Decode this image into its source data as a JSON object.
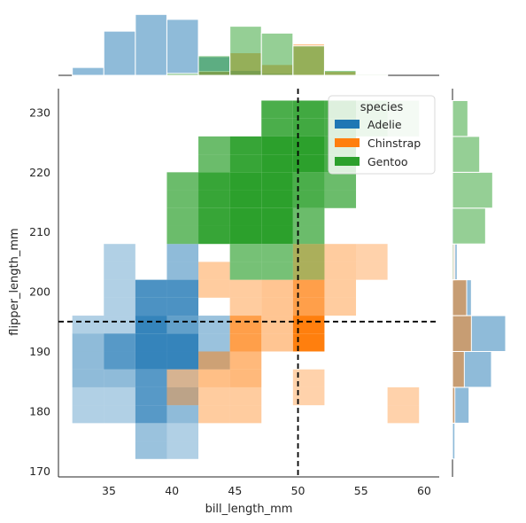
{
  "chart_data": {
    "type": "heatmap",
    "subtype": "joint-histogram-with-marginals",
    "xlabel": "bill_length_mm",
    "ylabel": "flipper_length_mm",
    "xlim": [
      31,
      61.2
    ],
    "ylim": [
      169,
      234
    ],
    "xticks": [
      35,
      40,
      45,
      50,
      55,
      60
    ],
    "yticks": [
      170,
      180,
      190,
      200,
      210,
      220,
      230
    ],
    "x_bin_edges": [
      32.1,
      34.6,
      37.1,
      39.6,
      42.1,
      44.6,
      47.1,
      49.6,
      52.1,
      54.6,
      57.1,
      59.6
    ],
    "y_bin_edges": [
      172,
      175,
      178,
      181,
      184,
      187,
      190,
      193,
      196,
      199,
      202,
      205,
      208,
      211,
      214,
      217,
      220,
      223,
      226,
      229,
      232
    ],
    "reference_lines": {
      "x": 50,
      "y": 195,
      "style": "dashed",
      "color": "#000000"
    },
    "legend": {
      "title": "species",
      "placement": "top-right",
      "entries": [
        {
          "label": "Adelie",
          "color": "#1f77b4"
        },
        {
          "label": "Chinstrap",
          "color": "#ff7f0e"
        },
        {
          "label": "Gentoo",
          "color": "#2ca02c"
        }
      ]
    },
    "series": [
      {
        "name": "Adelie",
        "color": "#1f77b4",
        "cells": [
          [
            0,
            2,
            0.35
          ],
          [
            0,
            3,
            0.35
          ],
          [
            0,
            4,
            0.5
          ],
          [
            0,
            5,
            0.5
          ],
          [
            0,
            6,
            0.5
          ],
          [
            0,
            7,
            0.35
          ],
          [
            1,
            2,
            0.35
          ],
          [
            1,
            3,
            0.35
          ],
          [
            1,
            4,
            0.5
          ],
          [
            1,
            5,
            0.75
          ],
          [
            1,
            6,
            0.75
          ],
          [
            1,
            7,
            0.35
          ],
          [
            1,
            8,
            0.35
          ],
          [
            1,
            9,
            0.35
          ],
          [
            1,
            10,
            0.35
          ],
          [
            1,
            11,
            0.35
          ],
          [
            2,
            0,
            0.45
          ],
          [
            2,
            1,
            0.45
          ],
          [
            2,
            2,
            0.75
          ],
          [
            2,
            3,
            0.75
          ],
          [
            2,
            4,
            0.75
          ],
          [
            2,
            5,
            0.9
          ],
          [
            2,
            6,
            0.9
          ],
          [
            2,
            7,
            0.9
          ],
          [
            2,
            8,
            0.8
          ],
          [
            2,
            9,
            0.8
          ],
          [
            3,
            0,
            0.35
          ],
          [
            3,
            1,
            0.35
          ],
          [
            3,
            2,
            0.5
          ],
          [
            3,
            3,
            0.5
          ],
          [
            3,
            4,
            0.3
          ],
          [
            3,
            5,
            0.9
          ],
          [
            3,
            6,
            0.9
          ],
          [
            3,
            7,
            0.7
          ],
          [
            3,
            8,
            0.8
          ],
          [
            3,
            9,
            0.8
          ],
          [
            3,
            10,
            0.5
          ],
          [
            3,
            11,
            0.5
          ],
          [
            4,
            5,
            0.45
          ],
          [
            4,
            6,
            0.45
          ],
          [
            4,
            7,
            0.45
          ]
        ]
      },
      {
        "name": "Chinstrap",
        "color": "#ff7f0e",
        "cells": [
          [
            3,
            3,
            0.4
          ],
          [
            3,
            4,
            0.4
          ],
          [
            4,
            2,
            0.4
          ],
          [
            4,
            3,
            0.4
          ],
          [
            4,
            4,
            0.5
          ],
          [
            4,
            5,
            0.5
          ],
          [
            4,
            9,
            0.4
          ],
          [
            4,
            10,
            0.4
          ],
          [
            5,
            2,
            0.4
          ],
          [
            5,
            3,
            0.4
          ],
          [
            5,
            4,
            0.55
          ],
          [
            5,
            5,
            0.55
          ],
          [
            5,
            6,
            0.75
          ],
          [
            5,
            7,
            0.75
          ],
          [
            5,
            8,
            0.4
          ],
          [
            5,
            9,
            0.4
          ],
          [
            6,
            6,
            0.45
          ],
          [
            6,
            7,
            0.45
          ],
          [
            6,
            8,
            0.45
          ],
          [
            6,
            9,
            0.45
          ],
          [
            7,
            3,
            0.35
          ],
          [
            7,
            4,
            0.35
          ],
          [
            7,
            6,
            1.0
          ],
          [
            7,
            7,
            1.0
          ],
          [
            7,
            8,
            0.75
          ],
          [
            7,
            9,
            0.75
          ],
          [
            7,
            10,
            0.55
          ],
          [
            7,
            11,
            0.55
          ],
          [
            8,
            8,
            0.4
          ],
          [
            8,
            9,
            0.4
          ],
          [
            8,
            10,
            0.4
          ],
          [
            8,
            11,
            0.4
          ],
          [
            9,
            10,
            0.35
          ],
          [
            9,
            11,
            0.35
          ],
          [
            10,
            2,
            0.35
          ],
          [
            10,
            3,
            0.35
          ]
        ]
      },
      {
        "name": "Gentoo",
        "color": "#2ca02c",
        "cells": [
          [
            3,
            12,
            0.7
          ],
          [
            3,
            13,
            0.7
          ],
          [
            3,
            14,
            0.7
          ],
          [
            3,
            15,
            0.7
          ],
          [
            4,
            12,
            0.95
          ],
          [
            4,
            13,
            0.95
          ],
          [
            4,
            14,
            0.95
          ],
          [
            4,
            15,
            0.95
          ],
          [
            4,
            16,
            0.7
          ],
          [
            4,
            17,
            0.7
          ],
          [
            5,
            10,
            0.65
          ],
          [
            5,
            11,
            0.65
          ],
          [
            5,
            12,
            1.0
          ],
          [
            5,
            13,
            1.0
          ],
          [
            5,
            14,
            1.0
          ],
          [
            5,
            15,
            1.0
          ],
          [
            5,
            16,
            0.95
          ],
          [
            5,
            17,
            0.95
          ],
          [
            6,
            10,
            0.65
          ],
          [
            6,
            11,
            0.65
          ],
          [
            6,
            12,
            1.0
          ],
          [
            6,
            13,
            1.0
          ],
          [
            6,
            14,
            1.0
          ],
          [
            6,
            15,
            1.0
          ],
          [
            6,
            16,
            1.0
          ],
          [
            6,
            17,
            1.0
          ],
          [
            6,
            18,
            0.85
          ],
          [
            6,
            19,
            0.85
          ],
          [
            7,
            10,
            0.4
          ],
          [
            7,
            11,
            0.4
          ],
          [
            7,
            12,
            0.7
          ],
          [
            7,
            13,
            0.7
          ],
          [
            7,
            14,
            0.85
          ],
          [
            7,
            15,
            0.85
          ],
          [
            7,
            16,
            1.0
          ],
          [
            7,
            17,
            1.0
          ],
          [
            7,
            18,
            0.9
          ],
          [
            7,
            19,
            0.9
          ],
          [
            8,
            14,
            0.7
          ],
          [
            8,
            15,
            0.7
          ],
          [
            8,
            16,
            0.85
          ],
          [
            8,
            17,
            0.85
          ],
          [
            8,
            18,
            0.85
          ],
          [
            8,
            19,
            0.85
          ],
          [
            9,
            18,
            0.5
          ],
          [
            9,
            19,
            0.5
          ],
          [
            10,
            18,
            0.3
          ],
          [
            10,
            19,
            0.3
          ]
        ]
      }
    ],
    "marginal_x": {
      "bin_width": 2.5,
      "series": [
        {
          "name": "Adelie",
          "color": "#1f77b4",
          "bin_starts": [
            32.1,
            34.6,
            37.1,
            39.6,
            42.1,
            44.6,
            47.1
          ],
          "counts": [
            8,
            45,
            62,
            57,
            19,
            5,
            2
          ]
        },
        {
          "name": "Chinstrap",
          "color": "#ff7f0e",
          "bin_starts": [
            39.6,
            42.1,
            44.6,
            47.1,
            49.6,
            52.1,
            54.6
          ],
          "counts": [
            1,
            4,
            23,
            11,
            32,
            4,
            1
          ]
        },
        {
          "name": "Gentoo",
          "color": "#2ca02c",
          "bin_starts": [
            39.6,
            42.1,
            44.6,
            47.1,
            49.6,
            52.1,
            54.6
          ],
          "counts": [
            2,
            20,
            50,
            43,
            30,
            5,
            1
          ]
        }
      ]
    },
    "marginal_y": {
      "bin_width": 6,
      "series": [
        {
          "name": "Adelie",
          "color": "#1f77b4",
          "bin_starts": [
            172,
            178,
            184,
            190,
            196,
            202,
            208
          ],
          "counts": [
            2,
            14,
            33,
            45,
            16,
            4,
            1
          ]
        },
        {
          "name": "Chinstrap",
          "color": "#ff7f0e",
          "bin_starts": [
            178,
            184,
            190,
            196,
            202,
            208
          ],
          "counts": [
            2,
            10,
            16,
            12,
            2,
            0
          ]
        },
        {
          "name": "Gentoo",
          "color": "#2ca02c",
          "bin_starts": [
            202,
            208,
            214,
            220,
            226
          ],
          "counts": [
            1,
            28,
            34,
            23,
            13
          ]
        }
      ]
    }
  }
}
